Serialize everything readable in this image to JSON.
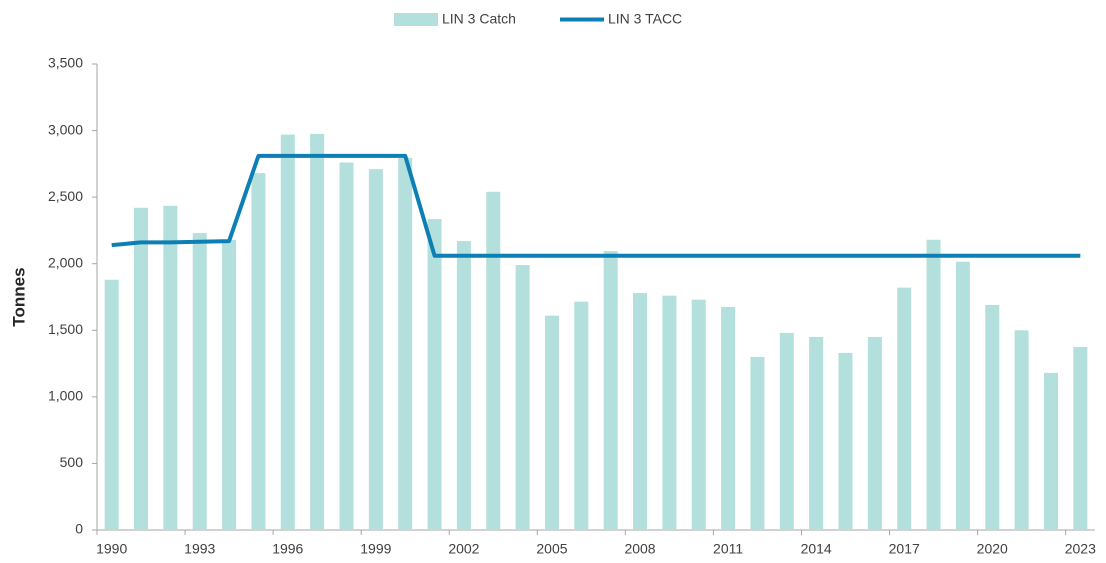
{
  "chart_data": {
    "type": "bar",
    "categories": [
      "1990",
      null,
      null,
      "1993",
      null,
      null,
      "1996",
      null,
      null,
      "1999",
      null,
      null,
      "2002",
      null,
      null,
      "2005",
      null,
      null,
      "2008",
      null,
      null,
      "2011",
      null,
      null,
      "2014",
      null,
      null,
      "2017",
      null,
      null,
      "2020",
      null,
      null,
      "2023"
    ],
    "series": [
      {
        "name": "LIN 3 Catch",
        "type": "bar",
        "color": "#b3e0dc",
        "values": [
          1880,
          2420,
          2435,
          2230,
          2180,
          2680,
          2970,
          2975,
          2760,
          2710,
          2795,
          2335,
          2170,
          2540,
          1990,
          1610,
          1715,
          2095,
          1780,
          1760,
          1730,
          1675,
          1300,
          1480,
          1450,
          1330,
          1450,
          1820,
          2180,
          2015,
          1690,
          1500,
          1180,
          1375
        ]
      },
      {
        "name": "LIN 3 TACC",
        "type": "line",
        "color": "#0e7fb5",
        "values": [
          2140,
          2160,
          2160,
          2165,
          2170,
          2810,
          2810,
          2810,
          2810,
          2810,
          2810,
          2060,
          2060,
          2060,
          2060,
          2060,
          2060,
          2060,
          2060,
          2060,
          2060,
          2060,
          2060,
          2060,
          2060,
          2060,
          2060,
          2060,
          2060,
          2060,
          2060,
          2060,
          2060,
          2060
        ]
      }
    ],
    "y_label": "Tonnes",
    "ylim": [
      0,
      3500
    ],
    "yticks": [
      0,
      500,
      {
        "value": 1000,
        "label": "1,000"
      },
      {
        "value": 1500,
        "label": "1,500"
      },
      {
        "value": 2000,
        "label": "2,000"
      },
      {
        "value": 2500,
        "label": "2,500"
      },
      {
        "value": 3000,
        "label": "3,000"
      },
      {
        "value": 3500,
        "label": "3,500"
      }
    ],
    "grid": false,
    "legend": "top"
  }
}
